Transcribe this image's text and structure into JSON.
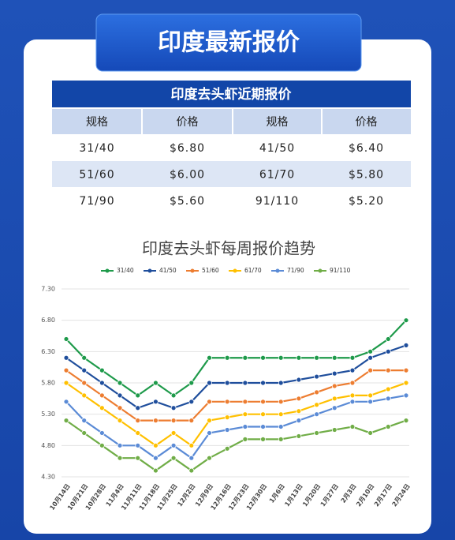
{
  "header": {
    "title": "印度最新报价"
  },
  "table": {
    "title": "印度去头虾近期报价",
    "columns": [
      "规格",
      "价格",
      "规格",
      "价格"
    ],
    "rows": [
      [
        "31/40",
        "$6.80",
        "41/50",
        "$6.40"
      ],
      [
        "51/60",
        "$6.00",
        "61/70",
        "$5.80"
      ],
      [
        "71/90",
        "$5.60",
        "91/110",
        "$5.20"
      ]
    ]
  },
  "chart_data": {
    "type": "line",
    "title": "印度去头虾每周报价趋势",
    "categories": [
      "10月14日",
      "10月21日",
      "10月28日",
      "11月4日",
      "11月11日",
      "11月18日",
      "11月25日",
      "12月2日",
      "12月9日",
      "12月16日",
      "12月23日",
      "12月30日",
      "1月6日",
      "1月13日",
      "1月20日",
      "1月27日",
      "2月3日",
      "2月10日",
      "2月17日",
      "2月24日"
    ],
    "series": [
      {
        "name": "31/40",
        "color": "#1e9a4a",
        "values": [
          6.5,
          6.2,
          6.0,
          5.8,
          5.6,
          5.8,
          5.6,
          5.8,
          6.2,
          6.2,
          6.2,
          6.2,
          6.2,
          6.2,
          6.2,
          6.2,
          6.2,
          6.3,
          6.5,
          6.8
        ]
      },
      {
        "name": "41/50",
        "color": "#1f4e9c",
        "values": [
          6.2,
          6.0,
          5.8,
          5.6,
          5.4,
          5.5,
          5.4,
          5.5,
          5.8,
          5.8,
          5.8,
          5.8,
          5.8,
          5.85,
          5.9,
          5.95,
          6.0,
          6.2,
          6.3,
          6.4
        ]
      },
      {
        "name": "51/60",
        "color": "#ed7d31",
        "values": [
          6.0,
          5.8,
          5.6,
          5.4,
          5.2,
          5.2,
          5.2,
          5.2,
          5.5,
          5.5,
          5.5,
          5.5,
          5.5,
          5.55,
          5.65,
          5.75,
          5.8,
          6.0,
          6.0,
          6.0
        ]
      },
      {
        "name": "61/70",
        "color": "#ffc000",
        "values": [
          5.8,
          5.6,
          5.4,
          5.2,
          5.0,
          4.8,
          5.0,
          4.8,
          5.2,
          5.25,
          5.3,
          5.3,
          5.3,
          5.35,
          5.45,
          5.55,
          5.6,
          5.6,
          5.7,
          5.8
        ]
      },
      {
        "name": "71/90",
        "color": "#5b8bd6",
        "values": [
          5.5,
          5.2,
          5.0,
          4.8,
          4.8,
          4.6,
          4.8,
          4.6,
          5.0,
          5.05,
          5.1,
          5.1,
          5.1,
          5.2,
          5.3,
          5.4,
          5.5,
          5.5,
          5.55,
          5.6
        ]
      },
      {
        "name": "91/110",
        "color": "#70ad47",
        "values": [
          5.2,
          5.0,
          4.8,
          4.6,
          4.6,
          4.4,
          4.6,
          4.4,
          4.6,
          4.75,
          4.9,
          4.9,
          4.9,
          4.95,
          5.0,
          5.05,
          5.1,
          5.0,
          5.1,
          5.2
        ]
      }
    ],
    "ylim": [
      4.3,
      7.3
    ],
    "yticks": [
      {
        "value": 4.3,
        "label": "4.30"
      },
      {
        "value": 4.8,
        "label": "4.80"
      },
      {
        "value": 5.3,
        "label": "5.30"
      },
      {
        "value": 5.8,
        "label": "5.80"
      },
      {
        "value": 6.3,
        "label": "6.30"
      },
      {
        "value": 6.8,
        "label": "6.80"
      },
      {
        "value": 7.3,
        "label": "7.30"
      }
    ],
    "grid": true,
    "legend": "top"
  }
}
